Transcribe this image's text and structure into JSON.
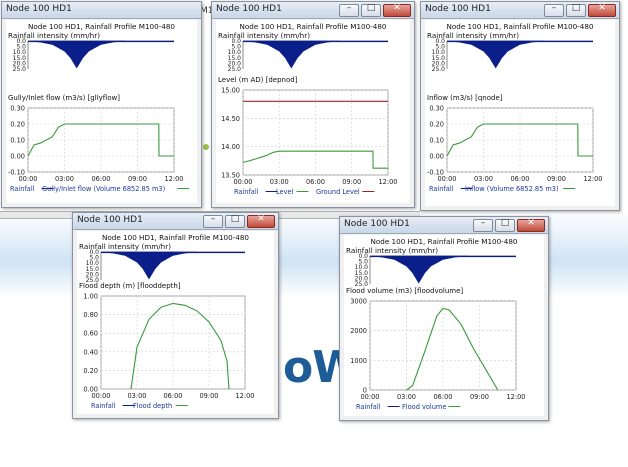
{
  "background": {
    "logo_fragment": "oWe",
    "hidden_title_fragment": "M1"
  },
  "profile_title": "Node 100 HD1, Rainfall Profile M100-480",
  "rain_label": "Rainfall intensity (mm/hr)",
  "rain_ticks": [
    "0.0",
    "5.0",
    "10.0",
    "15.0",
    "20.0",
    "25.0"
  ],
  "legend_rainfall": "Rainfall",
  "colors": {
    "rain": "#0b1f8a",
    "green": "#3a9a3a",
    "red": "#a0202a",
    "titlebar": "#c9d7e8",
    "close": "#c24a3a"
  },
  "windows": [
    {
      "title": "Node 100 HD1",
      "main_label": "Gully/Inlet flow (m3/s) [gllyflow]",
      "yticks": [
        "0.30",
        "0.20",
        "0.10",
        "0.00",
        "-0.10"
      ],
      "xticks": [
        "00:00",
        "03:00",
        "06:00",
        "09:00",
        "12:00"
      ],
      "legend": [
        "Gully/Inlet flow (Volume 6852.85 m3)"
      ]
    },
    {
      "title": "Node 100 HD1",
      "main_label": "Level (m AD) [depnod]",
      "yticks": [
        "15.00",
        "14.50",
        "14.00",
        "13.50"
      ],
      "xticks": [
        "00:00",
        "03:00",
        "06:00",
        "09:00",
        "12:00"
      ],
      "legend": [
        "Level",
        "Ground Level"
      ]
    },
    {
      "title": "Node 100 HD1",
      "main_label": "Inflow (m3/s) [qnode]",
      "yticks": [
        "0.30",
        "0.20",
        "0.10",
        "0.00",
        "-0.10"
      ],
      "xticks": [
        "00:00",
        "03:00",
        "06:00",
        "09:00",
        "12:00"
      ],
      "legend": [
        "Inflow (Volume 6852.85 m3)"
      ]
    },
    {
      "title": "Node 100 HD1",
      "main_label": "Flood depth (m) [flooddepth]",
      "yticks": [
        "1.00",
        "0.80",
        "0.60",
        "0.40",
        "0.20",
        "0.00"
      ],
      "xticks": [
        "00:00",
        "03:00",
        "06:00",
        "09:00",
        "12:00"
      ],
      "legend": [
        "Flood depth"
      ]
    },
    {
      "title": "Node 100 HD1",
      "main_label": "Flood volume (m3) [floodvolume]",
      "yticks": [
        "3000",
        "2000",
        "1000",
        "0"
      ],
      "xticks": [
        "00:00",
        "03:00",
        "06:00",
        "09:00",
        "12:00"
      ],
      "legend": [
        "Flood volume"
      ]
    }
  ],
  "chart_data": [
    {
      "type": "area",
      "title": "Node 100 HD1, Rainfall Profile M100-480",
      "ylabel": "Rainfall intensity (mm/hr)",
      "ylim": [
        25,
        0
      ],
      "x": [
        "00:00",
        "01:00",
        "02:00",
        "03:00",
        "03:30",
        "04:00",
        "04:30",
        "05:00",
        "06:00",
        "07:00",
        "08:00"
      ],
      "values": [
        0,
        1,
        3,
        9,
        15,
        24,
        15,
        9,
        3,
        1,
        0
      ]
    },
    {
      "type": "line",
      "ylabel": "Gully/Inlet flow (m3/s) [gllyflow]",
      "ylim": [
        -0.1,
        0.3
      ],
      "series": [
        {
          "name": "Gully/Inlet flow (Volume 6852.85 m3)",
          "x": [
            "00:00",
            "00:30",
            "01:00",
            "02:00",
            "02:30",
            "03:00",
            "10:45",
            "10:46",
            "12:00"
          ],
          "values": [
            0.0,
            0.07,
            0.08,
            0.12,
            0.18,
            0.2,
            0.2,
            0.0,
            0.0
          ]
        }
      ]
    },
    {
      "type": "line",
      "ylabel": "Level (m AD) [depnod]",
      "ylim": [
        13.5,
        15.0
      ],
      "series": [
        {
          "name": "Level",
          "x": [
            "00:00",
            "01:00",
            "02:00",
            "02:30",
            "03:00",
            "10:45",
            "10:46",
            "12:00"
          ],
          "values": [
            13.72,
            13.78,
            13.85,
            13.9,
            13.92,
            13.92,
            13.62,
            13.62
          ]
        },
        {
          "name": "Ground Level",
          "x": [
            "00:00",
            "12:00"
          ],
          "values": [
            14.8,
            14.8
          ]
        }
      ]
    },
    {
      "type": "line",
      "ylabel": "Inflow (m3/s) [qnode]",
      "ylim": [
        -0.1,
        0.3
      ],
      "series": [
        {
          "name": "Inflow (Volume 6852.85 m3)",
          "x": [
            "00:00",
            "00:30",
            "01:00",
            "02:00",
            "02:30",
            "03:00",
            "10:45",
            "10:46",
            "12:00"
          ],
          "values": [
            0.0,
            0.07,
            0.08,
            0.12,
            0.18,
            0.2,
            0.2,
            0.0,
            0.0
          ]
        }
      ]
    },
    {
      "type": "line",
      "ylabel": "Flood depth (m) [flooddepth]",
      "ylim": [
        0,
        1.0
      ],
      "series": [
        {
          "name": "Flood depth",
          "x": [
            "02:30",
            "03:00",
            "04:00",
            "05:00",
            "06:00",
            "07:00",
            "08:00",
            "09:00",
            "10:00",
            "10:30",
            "10:40"
          ],
          "values": [
            0.0,
            0.45,
            0.75,
            0.88,
            0.92,
            0.9,
            0.84,
            0.72,
            0.52,
            0.3,
            0.0
          ]
        }
      ]
    },
    {
      "type": "line",
      "ylabel": "Flood volume (m3) [floodvolume]",
      "ylim": [
        0,
        3000
      ],
      "series": [
        {
          "name": "Flood volume",
          "x": [
            "03:00",
            "03:30",
            "04:30",
            "05:30",
            "06:00",
            "06:30",
            "07:30",
            "08:30",
            "09:30",
            "10:30"
          ],
          "values": [
            0,
            150,
            1300,
            2500,
            2750,
            2700,
            2200,
            1400,
            700,
            0
          ]
        }
      ]
    }
  ]
}
